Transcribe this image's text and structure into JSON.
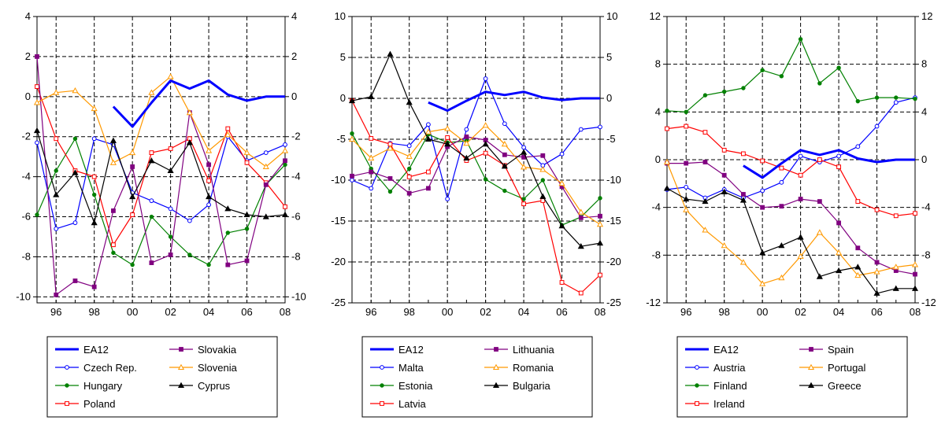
{
  "chart_data": [
    {
      "type": "line",
      "x_ticks": [
        "96",
        "98",
        "00",
        "02",
        "04",
        "06",
        "08"
      ],
      "ylim": [
        -10.3,
        4
      ],
      "y_ticks": [
        "4",
        "2",
        "0",
        "-2",
        "-4",
        "-6",
        "-8",
        "-10"
      ],
      "y_tick_values": [
        4,
        2,
        0,
        -2,
        -4,
        -6,
        -8,
        -10
      ],
      "grid": true,
      "series": [
        {
          "name": "EA12",
          "color": "#0000ff",
          "marker": "none",
          "bold": true,
          "x": [
            1999,
            2000,
            2001,
            2002,
            2003,
            2004,
            2005,
            2006,
            2007,
            2008
          ],
          "y": [
            -0.5,
            -1.5,
            -0.3,
            0.8,
            0.4,
            0.8,
            0.1,
            -0.2,
            0.0,
            0.0
          ]
        },
        {
          "name": "Czech Rep.",
          "color": "#0000ff",
          "marker": "circle",
          "x": [
            1995,
            1996,
            1997,
            1998,
            1999,
            2000,
            2001,
            2002,
            2003,
            2004,
            2005,
            2006,
            2007,
            2008
          ],
          "y": [
            -2.3,
            -6.6,
            -6.3,
            -2.1,
            -2.4,
            -4.8,
            -5.2,
            -5.6,
            -6.2,
            -5.4,
            -2.0,
            -3.2,
            -2.8,
            -2.4
          ]
        },
        {
          "name": "Hungary",
          "color": "#008000",
          "marker": "dot",
          "x": [
            1995,
            1996,
            1997,
            1998,
            1999,
            2000,
            2001,
            2002,
            2003,
            2004,
            2005,
            2006,
            2007,
            2008
          ],
          "y": [
            -5.9,
            -3.7,
            -2.1,
            -4.9,
            -7.8,
            -8.4,
            -6.0,
            -7.0,
            -7.9,
            -8.4,
            -6.8,
            -6.6,
            -4.4,
            -3.4
          ]
        },
        {
          "name": "Poland",
          "color": "#ff0000",
          "marker": "square",
          "x": [
            1995,
            1996,
            1997,
            1998,
            1999,
            2000,
            2001,
            2002,
            2003,
            2004,
            2005,
            2006,
            2007,
            2008
          ],
          "y": [
            0.5,
            -2.1,
            -3.7,
            -4.0,
            -7.4,
            -5.9,
            -2.8,
            -2.6,
            -2.1,
            -4.2,
            -1.6,
            -3.3,
            -4.3,
            -5.5
          ]
        },
        {
          "name": "Slovakia",
          "color": "#800080",
          "marker": "square",
          "x": [
            1995,
            1996,
            1997,
            1998,
            1999,
            2000,
            2001,
            2002,
            2003,
            2004,
            2005,
            2006,
            2007,
            2008
          ],
          "y": [
            2.0,
            -9.9,
            -9.2,
            -9.5,
            -5.7,
            -3.5,
            -8.3,
            -7.9,
            -0.8,
            -3.4,
            -8.4,
            -8.2,
            -4.4,
            -3.2
          ]
        },
        {
          "name": "Slovenia",
          "color": "#ff9900",
          "marker": "triangle-open",
          "x": [
            1995,
            1996,
            1997,
            1998,
            1999,
            2000,
            2001,
            2002,
            2003,
            2004,
            2005,
            2006,
            2007,
            2008
          ],
          "y": [
            -0.3,
            0.2,
            0.3,
            -0.6,
            -3.3,
            -2.8,
            0.2,
            1.0,
            -0.8,
            -2.7,
            -1.9,
            -2.8,
            -3.5,
            -2.7
          ]
        },
        {
          "name": "Cyprus",
          "color": "#000000",
          "marker": "triangle",
          "x": [
            1995,
            1996,
            1997,
            1998,
            1999,
            2000,
            2001,
            2002,
            2003,
            2004,
            2005,
            2006,
            2007,
            2008
          ],
          "y": [
            -1.7,
            -4.9,
            -3.8,
            -6.3,
            -2.2,
            -5.0,
            -3.2,
            -3.7,
            -2.3,
            -5.0,
            -5.6,
            -5.9,
            -6.0,
            -5.9
          ]
        }
      ]
    },
    {
      "type": "line",
      "x_ticks": [
        "96",
        "98",
        "00",
        "02",
        "04",
        "06",
        "08"
      ],
      "ylim": [
        -25,
        10
      ],
      "y_ticks": [
        "10",
        "5",
        "0",
        "-5",
        "-10",
        "-15",
        "-20",
        "-25"
      ],
      "y_tick_values": [
        10,
        5,
        0,
        -5,
        -10,
        -15,
        -20,
        -25
      ],
      "grid": true,
      "series": [
        {
          "name": "EA12",
          "color": "#0000ff",
          "marker": "none",
          "bold": true,
          "x": [
            1999,
            2000,
            2001,
            2002,
            2003,
            2004,
            2005,
            2006,
            2007,
            2008
          ],
          "y": [
            -0.5,
            -1.5,
            -0.3,
            0.8,
            0.4,
            0.8,
            0.1,
            -0.2,
            0.0,
            0.0
          ]
        },
        {
          "name": "Malta",
          "color": "#0000ff",
          "marker": "circle",
          "x": [
            1995,
            1996,
            1997,
            1998,
            1999,
            2000,
            2001,
            2002,
            2003,
            2004,
            2005,
            2006,
            2007,
            2008
          ],
          "y": [
            -10.0,
            -11.0,
            -5.5,
            -5.8,
            -3.2,
            -12.3,
            -3.8,
            2.4,
            -3.1,
            -6.0,
            -8.2,
            -6.8,
            -3.8,
            -3.5
          ]
        },
        {
          "name": "Estonia",
          "color": "#008000",
          "marker": "dot",
          "x": [
            1995,
            1996,
            1997,
            1998,
            1999,
            2000,
            2001,
            2002,
            2003,
            2004,
            2005,
            2006,
            2007,
            2008
          ],
          "y": [
            -4.3,
            -8.6,
            -11.4,
            -8.6,
            -4.4,
            -5.4,
            -5.2,
            -9.9,
            -11.3,
            -12.3,
            -10.0,
            -15.5,
            -14.5,
            -12.2
          ]
        },
        {
          "name": "Latvia",
          "color": "#ff0000",
          "marker": "square",
          "x": [
            1995,
            1996,
            1997,
            1998,
            1999,
            2000,
            2001,
            2002,
            2003,
            2004,
            2005,
            2006,
            2007,
            2008
          ],
          "y": [
            -0.3,
            -4.9,
            -5.6,
            -9.6,
            -9.0,
            -4.8,
            -7.6,
            -6.7,
            -8.2,
            -12.9,
            -12.5,
            -22.5,
            -23.8,
            -21.6
          ]
        },
        {
          "name": "Lithuania",
          "color": "#800080",
          "marker": "square",
          "x": [
            1995,
            1996,
            1997,
            1998,
            1999,
            2000,
            2001,
            2002,
            2003,
            2004,
            2005,
            2006,
            2007,
            2008
          ],
          "y": [
            -9.5,
            -9.0,
            -9.8,
            -11.6,
            -11.0,
            -5.9,
            -4.7,
            -5.1,
            -6.9,
            -7.2,
            -7.0,
            -10.8,
            -14.6,
            -14.4
          ]
        },
        {
          "name": "Romania",
          "color": "#ff9900",
          "marker": "triangle-open",
          "x": [
            1995,
            1996,
            1997,
            1998,
            1999,
            2000,
            2001,
            2002,
            2003,
            2004,
            2005,
            2006,
            2007,
            2008
          ],
          "y": [
            -5.0,
            -7.3,
            -6.1,
            -7.1,
            -4.1,
            -3.7,
            -5.5,
            -3.3,
            -5.6,
            -8.4,
            -8.7,
            -10.4,
            -13.9,
            -15.4
          ]
        },
        {
          "name": "Bulgaria",
          "color": "#000000",
          "marker": "triangle",
          "x": [
            1995,
            1996,
            1997,
            1998,
            1999,
            2000,
            2001,
            2002,
            2003,
            2004,
            2005,
            2006,
            2007,
            2008
          ],
          "y": [
            -0.3,
            0.2,
            5.4,
            -0.5,
            -5.0,
            -5.6,
            -7.3,
            -5.6,
            -8.3,
            -6.6,
            -12.0,
            -15.6,
            -18.1,
            -17.7
          ]
        }
      ]
    },
    {
      "type": "line",
      "x_ticks": [
        "96",
        "98",
        "00",
        "02",
        "04",
        "06",
        "08"
      ],
      "ylim": [
        -12,
        12
      ],
      "y_ticks": [
        "12",
        "8",
        "4",
        "0",
        "-4",
        "-8",
        "-12"
      ],
      "y_tick_values": [
        12,
        8,
        4,
        0,
        -4,
        -8,
        -12
      ],
      "grid": true,
      "series": [
        {
          "name": "EA12",
          "color": "#0000ff",
          "marker": "none",
          "bold": true,
          "x": [
            1999,
            2000,
            2001,
            2002,
            2003,
            2004,
            2005,
            2006,
            2007,
            2008
          ],
          "y": [
            -0.5,
            -1.5,
            -0.3,
            0.8,
            0.4,
            0.8,
            0.1,
            -0.2,
            0.0,
            0.0
          ]
        },
        {
          "name": "Austria",
          "color": "#0000ff",
          "marker": "circle",
          "x": [
            1995,
            1996,
            1997,
            1998,
            1999,
            2000,
            2001,
            2002,
            2003,
            2004,
            2005,
            2006,
            2007,
            2008
          ],
          "y": [
            -2.5,
            -2.3,
            -3.2,
            -2.5,
            -3.2,
            -2.6,
            -1.9,
            0.3,
            -0.2,
            0.3,
            1.1,
            2.8,
            4.8,
            5.2
          ]
        },
        {
          "name": "Finland",
          "color": "#008000",
          "marker": "dot",
          "x": [
            1995,
            1996,
            1997,
            1998,
            1999,
            2000,
            2001,
            2002,
            2003,
            2004,
            2005,
            2006,
            2007,
            2008
          ],
          "y": [
            4.1,
            4.0,
            5.4,
            5.7,
            6.0,
            7.5,
            7.0,
            10.1,
            6.4,
            7.7,
            4.9,
            5.2,
            5.2,
            5.1
          ]
        },
        {
          "name": "Ireland",
          "color": "#ff0000",
          "marker": "square",
          "x": [
            1995,
            1996,
            1997,
            1998,
            1999,
            2000,
            2001,
            2002,
            2003,
            2004,
            2005,
            2006,
            2007,
            2008
          ],
          "y": [
            2.6,
            2.8,
            2.3,
            0.8,
            0.5,
            -0.1,
            -0.7,
            -1.3,
            0.0,
            -0.6,
            -3.5,
            -4.2,
            -4.7,
            -4.5
          ]
        },
        {
          "name": "Spain",
          "color": "#800080",
          "marker": "square",
          "x": [
            1995,
            1996,
            1997,
            1998,
            1999,
            2000,
            2001,
            2002,
            2003,
            2004,
            2005,
            2006,
            2007,
            2008
          ],
          "y": [
            -0.3,
            -0.3,
            -0.2,
            -1.3,
            -2.9,
            -4.0,
            -3.9,
            -3.3,
            -3.5,
            -5.3,
            -7.4,
            -8.6,
            -9.3,
            -9.6
          ]
        },
        {
          "name": "Portugal",
          "color": "#ff9900",
          "marker": "triangle-open",
          "x": [
            1995,
            1996,
            1997,
            1998,
            1999,
            2000,
            2001,
            2002,
            2003,
            2004,
            2005,
            2006,
            2007,
            2008
          ],
          "y": [
            -0.2,
            -4.2,
            -5.9,
            -7.2,
            -8.6,
            -10.4,
            -9.9,
            -8.1,
            -6.1,
            -7.8,
            -9.7,
            -9.4,
            -9.0,
            -8.8
          ]
        },
        {
          "name": "Greece",
          "color": "#000000",
          "marker": "triangle",
          "x": [
            1995,
            1996,
            1997,
            1998,
            1999,
            2000,
            2001,
            2002,
            2003,
            2004,
            2005,
            2006,
            2007,
            2008
          ],
          "y": [
            -2.4,
            -3.3,
            -3.5,
            -2.7,
            -3.4,
            -7.8,
            -7.2,
            -6.5,
            -9.8,
            -9.3,
            -9.0,
            -11.2,
            -10.8,
            -10.8
          ]
        }
      ]
    }
  ]
}
